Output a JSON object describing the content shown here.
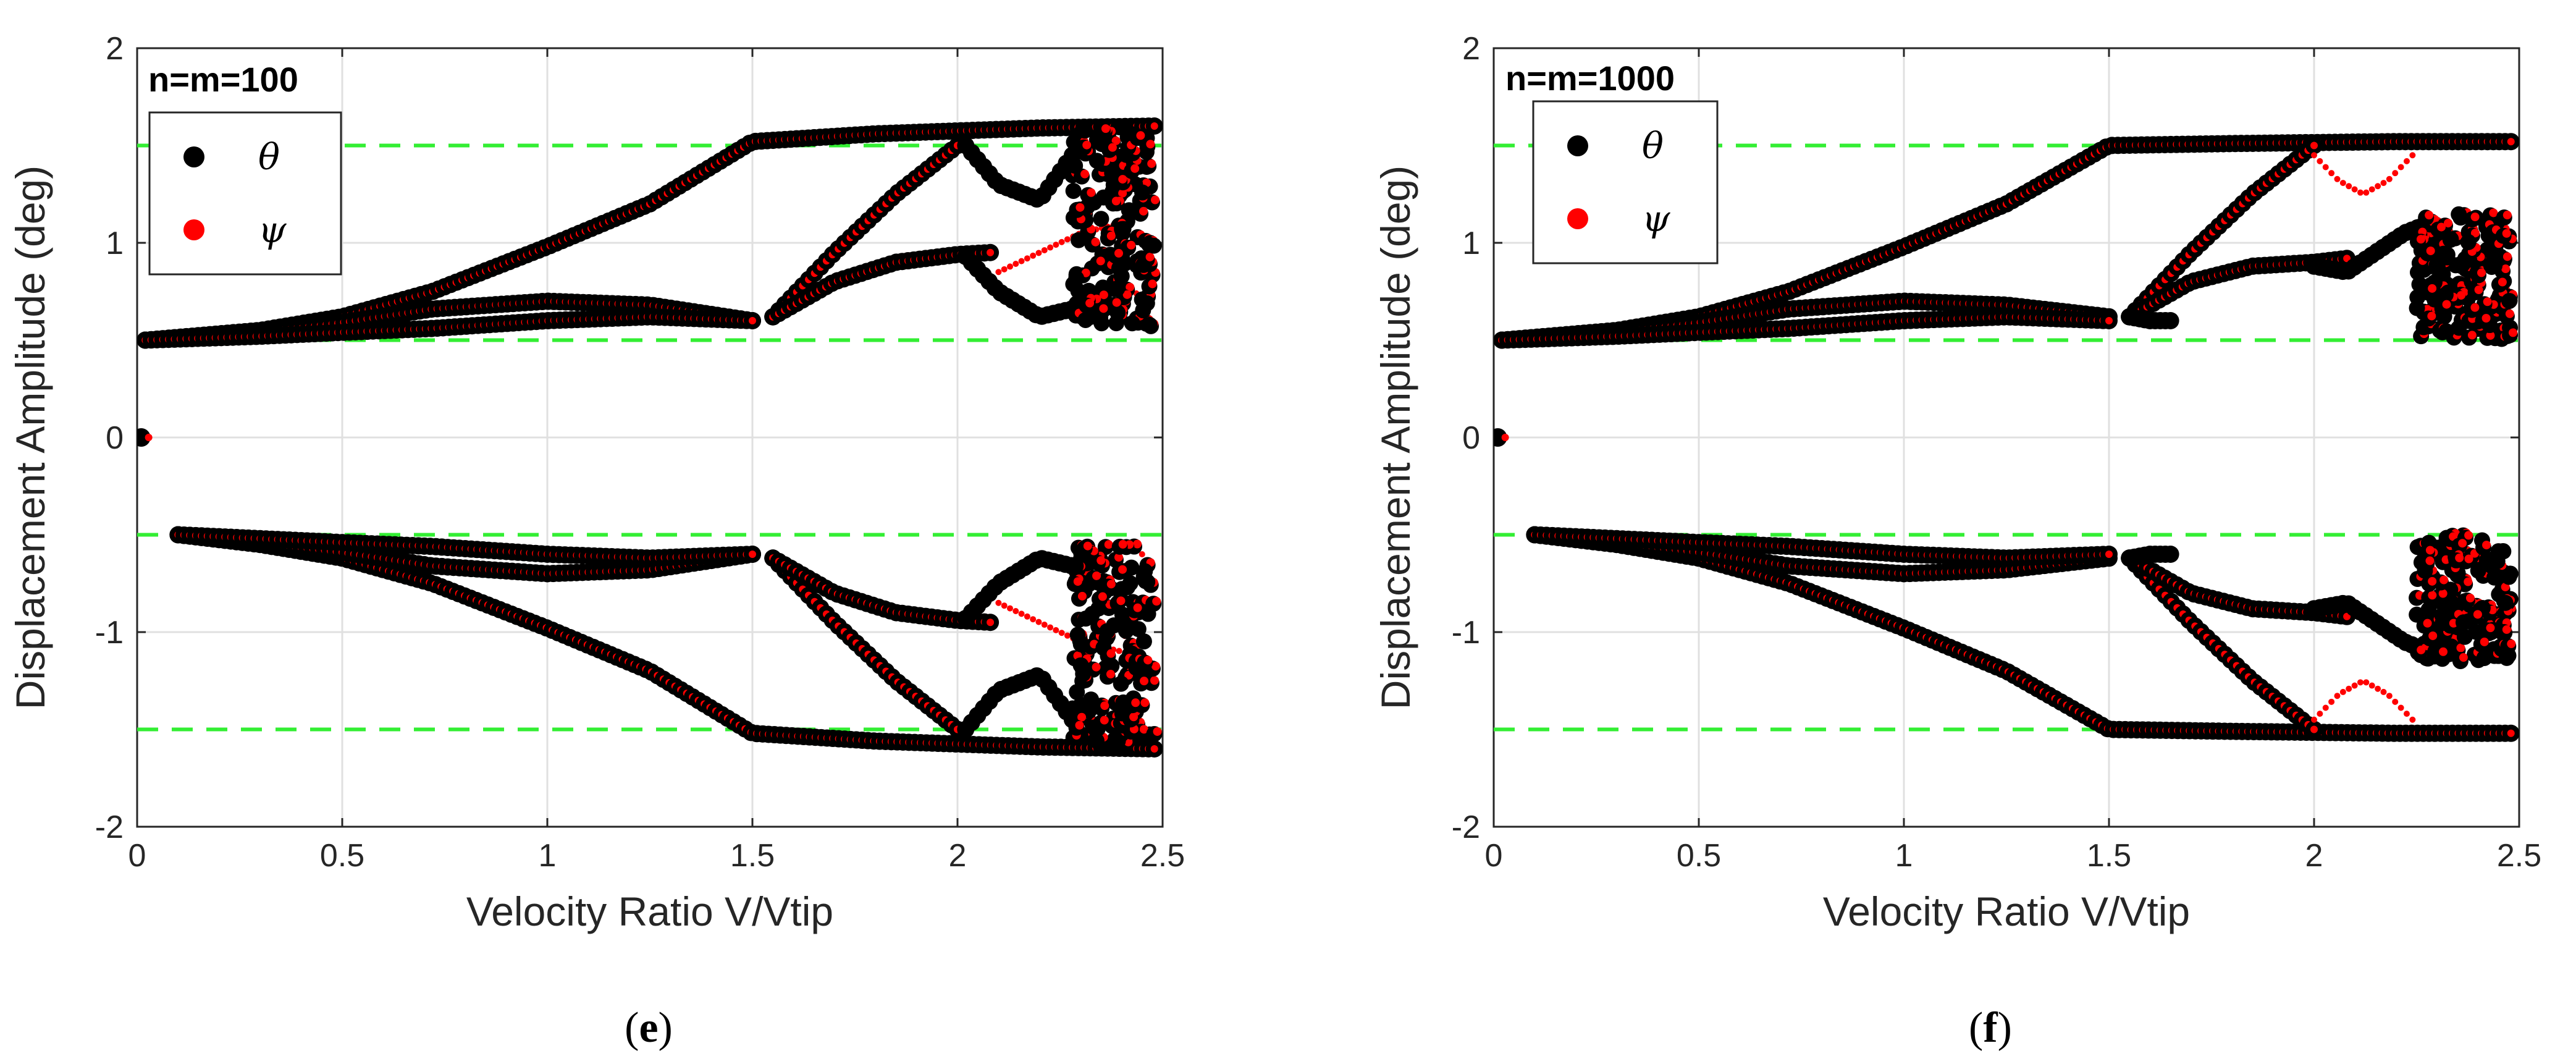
{
  "colors": {
    "theta": "#000000",
    "psi": "#ff0000",
    "reference": "#33ee33",
    "grid": "#e0e0e0",
    "axis": "#262626"
  },
  "chart_data": [
    {
      "type": "scatter",
      "panel_label": "n=m=100",
      "caption": {
        "open": "(",
        "letter": "e",
        "close": ")"
      },
      "xlabel": "Velocity Ratio V/Vtip",
      "ylabel": "Displacement Amplitude (deg)",
      "xlim": [
        0,
        2.5
      ],
      "ylim": [
        -2,
        2
      ],
      "x_ticks": [
        0,
        0.5,
        1,
        1.5,
        2,
        2.5
      ],
      "x_tick_labels": [
        "0",
        "0.5",
        "1",
        "1.5",
        "2",
        "2.5"
      ],
      "y_ticks": [
        2,
        1,
        0,
        -1,
        -2
      ],
      "y_tick_labels": [
        "2",
        "1",
        "0",
        "-1",
        "-2"
      ],
      "grid": true,
      "legend": {
        "placement": "top-left",
        "entries": [
          {
            "name": "θ",
            "series": "theta"
          },
          {
            "name": "ψ",
            "series": "psi"
          }
        ]
      },
      "reference_lines": [
        1.5,
        0.5,
        -0.5,
        -1.5
      ],
      "branches": [
        {
          "label": "upper-outer",
          "x": [
            0.02,
            0.3,
            0.5,
            0.72,
            1.0,
            1.25,
            1.5,
            1.8,
            2.2,
            2.48
          ],
          "y": [
            0.5,
            0.55,
            0.62,
            0.75,
            0.98,
            1.2,
            1.52,
            1.56,
            1.59,
            1.6
          ]
        },
        {
          "label": "upper-inner",
          "x": [
            0.02,
            0.3,
            0.5,
            0.72,
            1.0,
            1.25,
            1.5
          ],
          "y": [
            0.5,
            0.54,
            0.59,
            0.66,
            0.7,
            0.68,
            0.6
          ]
        },
        {
          "label": "upper-near",
          "x": [
            0.02,
            0.3,
            0.5,
            0.72,
            1.0,
            1.25,
            1.5
          ],
          "y": [
            0.5,
            0.52,
            0.54,
            0.56,
            0.6,
            0.62,
            0.6
          ]
        },
        {
          "label": "upper-rising",
          "x": [
            1.55,
            1.7,
            1.85,
            2.0
          ],
          "y": [
            0.62,
            0.95,
            1.25,
            1.5
          ]
        },
        {
          "label": "upper-middle",
          "x": [
            1.55,
            1.7,
            1.85,
            2.0,
            2.08
          ],
          "y": [
            0.62,
            0.8,
            0.9,
            0.94,
            0.95
          ]
        },
        {
          "label": "upper-theta-tail",
          "x": [
            2.02,
            2.1,
            2.2,
            2.28,
            2.32
          ],
          "y": [
            0.93,
            0.75,
            0.62,
            0.66,
            0.75
          ]
        },
        {
          "label": "upper-theta-arc",
          "x": [
            2.02,
            2.1,
            2.2,
            2.28
          ],
          "y": [
            1.5,
            1.3,
            1.22,
            1.45
          ]
        },
        {
          "label": "upper-psi-arc",
          "x": [
            2.1,
            2.2,
            2.3,
            2.4,
            2.45
          ],
          "y": [
            0.85,
            0.95,
            1.05,
            1.1,
            0.6
          ]
        },
        {
          "label": "lower-outer",
          "x": [
            0.1,
            0.3,
            0.5,
            0.72,
            1.0,
            1.25,
            1.5,
            1.8,
            2.2,
            2.48
          ],
          "y": [
            -0.5,
            -0.55,
            -0.62,
            -0.75,
            -0.98,
            -1.2,
            -1.52,
            -1.56,
            -1.59,
            -1.6
          ]
        },
        {
          "label": "lower-inner",
          "x": [
            0.1,
            0.3,
            0.5,
            0.72,
            1.0,
            1.25,
            1.5
          ],
          "y": [
            -0.5,
            -0.54,
            -0.59,
            -0.66,
            -0.7,
            -0.68,
            -0.6
          ]
        },
        {
          "label": "lower-near",
          "x": [
            0.1,
            0.3,
            0.5,
            0.72,
            1.0,
            1.25,
            1.5
          ],
          "y": [
            -0.5,
            -0.52,
            -0.54,
            -0.56,
            -0.6,
            -0.62,
            -0.6
          ]
        },
        {
          "label": "lower-falling",
          "x": [
            1.55,
            1.7,
            1.85,
            2.0
          ],
          "y": [
            -0.62,
            -0.95,
            -1.25,
            -1.5
          ]
        },
        {
          "label": "lower-middle",
          "x": [
            1.55,
            1.7,
            1.85,
            2.0,
            2.08
          ],
          "y": [
            -0.62,
            -0.8,
            -0.9,
            -0.94,
            -0.95
          ]
        },
        {
          "label": "lower-theta-tail",
          "x": [
            2.02,
            2.1,
            2.2,
            2.28,
            2.32
          ],
          "y": [
            -0.93,
            -0.75,
            -0.62,
            -0.66,
            -0.75
          ]
        },
        {
          "label": "lower-theta-arc",
          "x": [
            2.02,
            2.1,
            2.2,
            2.28
          ],
          "y": [
            -1.5,
            -1.3,
            -1.22,
            -1.45
          ]
        },
        {
          "label": "lower-psi-arc",
          "x": [
            2.1,
            2.2,
            2.3,
            2.4,
            2.45
          ],
          "y": [
            -0.85,
            -0.95,
            -1.05,
            -1.1,
            -0.6
          ]
        }
      ],
      "origin_point": {
        "x": 0.01,
        "y": 0
      },
      "scatter_cloud": {
        "x_range": [
          2.28,
          2.48
        ],
        "y_ranges": [
          [
            0.55,
            1.6
          ],
          [
            -1.6,
            -0.55
          ]
        ]
      }
    },
    {
      "type": "scatter",
      "panel_label": "n=m=1000",
      "caption": {
        "open": "(",
        "letter": "f",
        "close": ")"
      },
      "xlabel": "Velocity Ratio V/Vtip",
      "ylabel": "Displacement Amplitude (deg)",
      "xlim": [
        0,
        2.5
      ],
      "ylim": [
        -2,
        2
      ],
      "x_ticks": [
        0,
        0.5,
        1,
        1.5,
        2,
        2.5
      ],
      "x_tick_labels": [
        "0",
        "0.5",
        "1",
        "1.5",
        "2",
        "2.5"
      ],
      "y_ticks": [
        2,
        1,
        0,
        -1,
        -2
      ],
      "y_tick_labels": [
        "2",
        "1",
        "0",
        "-1",
        "-2"
      ],
      "grid": true,
      "legend": {
        "placement": "top-left",
        "entries": [
          {
            "name": "θ",
            "series": "theta"
          },
          {
            "name": "ψ",
            "series": "psi"
          }
        ]
      },
      "reference_lines": [
        1.5,
        0.5,
        -0.5,
        -1.5
      ],
      "branches": [
        {
          "label": "upper-outer",
          "x": [
            0.02,
            0.3,
            0.5,
            0.72,
            1.0,
            1.25,
            1.5,
            1.8,
            2.2,
            2.48
          ],
          "y": [
            0.5,
            0.55,
            0.62,
            0.75,
            0.98,
            1.2,
            1.5,
            1.51,
            1.52,
            1.52
          ]
        },
        {
          "label": "upper-inner",
          "x": [
            0.02,
            0.3,
            0.5,
            0.72,
            1.0,
            1.25,
            1.5
          ],
          "y": [
            0.5,
            0.54,
            0.59,
            0.66,
            0.7,
            0.68,
            0.62
          ]
        },
        {
          "label": "upper-near",
          "x": [
            0.02,
            0.3,
            0.5,
            0.72,
            1.0,
            1.25,
            1.5
          ],
          "y": [
            0.5,
            0.52,
            0.54,
            0.56,
            0.6,
            0.62,
            0.6
          ]
        },
        {
          "label": "upper-rising",
          "x": [
            1.55,
            1.7,
            1.85,
            2.0
          ],
          "y": [
            0.62,
            0.95,
            1.25,
            1.5
          ]
        },
        {
          "label": "upper-middle",
          "x": [
            1.55,
            1.7,
            1.85,
            2.0,
            2.08
          ],
          "y": [
            0.62,
            0.8,
            0.88,
            0.9,
            0.92
          ]
        },
        {
          "label": "upper-theta-tail",
          "x": [
            2.0,
            2.08,
            2.15,
            2.22,
            2.28
          ],
          "y": [
            0.88,
            0.85,
            0.95,
            1.05,
            1.1
          ]
        },
        {
          "label": "upper-psi-arc",
          "x": [
            2.0,
            2.06,
            2.12,
            2.18,
            2.24
          ],
          "y": [
            1.45,
            1.32,
            1.25,
            1.32,
            1.45
          ]
        },
        {
          "label": "upper-theta-early-tail",
          "x": [
            1.55,
            1.6,
            1.65
          ],
          "y": [
            0.62,
            0.6,
            0.6
          ]
        },
        {
          "label": "lower-outer",
          "x": [
            0.1,
            0.3,
            0.5,
            0.72,
            1.0,
            1.25,
            1.5,
            1.8,
            2.2,
            2.48
          ],
          "y": [
            -0.5,
            -0.55,
            -0.62,
            -0.75,
            -0.98,
            -1.2,
            -1.5,
            -1.51,
            -1.52,
            -1.52
          ]
        },
        {
          "label": "lower-inner",
          "x": [
            0.1,
            0.3,
            0.5,
            0.72,
            1.0,
            1.25,
            1.5
          ],
          "y": [
            -0.5,
            -0.54,
            -0.59,
            -0.66,
            -0.7,
            -0.68,
            -0.62
          ]
        },
        {
          "label": "lower-near",
          "x": [
            0.1,
            0.3,
            0.5,
            0.72,
            1.0,
            1.25,
            1.5
          ],
          "y": [
            -0.5,
            -0.52,
            -0.54,
            -0.56,
            -0.6,
            -0.62,
            -0.6
          ]
        },
        {
          "label": "lower-falling",
          "x": [
            1.55,
            1.7,
            1.85,
            2.0
          ],
          "y": [
            -0.62,
            -0.95,
            -1.25,
            -1.5
          ]
        },
        {
          "label": "lower-middle",
          "x": [
            1.55,
            1.7,
            1.85,
            2.0,
            2.08
          ],
          "y": [
            -0.62,
            -0.8,
            -0.88,
            -0.9,
            -0.92
          ]
        },
        {
          "label": "lower-theta-tail",
          "x": [
            2.0,
            2.08,
            2.15,
            2.22,
            2.28
          ],
          "y": [
            -0.88,
            -0.85,
            -0.95,
            -1.05,
            -1.1
          ]
        },
        {
          "label": "lower-psi-arc",
          "x": [
            2.0,
            2.06,
            2.12,
            2.18,
            2.24
          ],
          "y": [
            -1.45,
            -1.32,
            -1.25,
            -1.32,
            -1.45
          ]
        },
        {
          "label": "lower-theta-early-tail",
          "x": [
            1.55,
            1.6,
            1.65
          ],
          "y": [
            -0.62,
            -0.6,
            -0.6
          ]
        }
      ],
      "origin_point": {
        "x": 0.01,
        "y": 0
      },
      "scatter_cloud": {
        "x_range": [
          2.25,
          2.48
        ],
        "y_ranges": [
          [
            0.5,
            1.15
          ],
          [
            -1.15,
            -0.5
          ]
        ]
      }
    }
  ]
}
